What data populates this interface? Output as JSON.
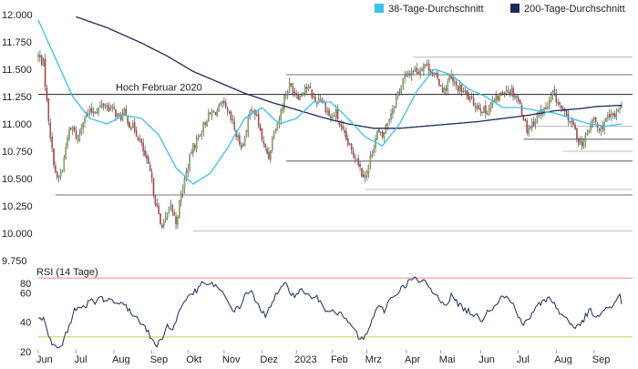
{
  "colors": {
    "ma38": "#3cc1e8",
    "ma200": "#1a2b5c",
    "candle_up": "#8bc34a",
    "candle_down": "#e03232",
    "wick": "#333333",
    "support_line": "#222222",
    "guide_line": "#aaaaaa",
    "rsi_line": "#1a2b5c",
    "rsi_upper": "#e06060",
    "rsi_lower": "#c8c83c",
    "grid": "#dddddd"
  },
  "chart_data": [
    {
      "type": "candlestick",
      "legend": [
        {
          "name": "38-Tage-Durchschnitt",
          "color": "#3cc1e8"
        },
        {
          "name": "200-Tage-Durchschnitt",
          "color": "#1a2b5c"
        }
      ],
      "legend_position": "top-right",
      "ylim": [
        9.75,
        12.0
      ],
      "y_ticks": [
        "12.000",
        "11.750",
        "11.500",
        "11.250",
        "11.000",
        "10.750",
        "10.500",
        "10.250",
        "10.000",
        "9.750"
      ],
      "y_tick_values": [
        12.0,
        11.75,
        11.5,
        11.25,
        11.0,
        10.75,
        10.5,
        10.25,
        10.0,
        9.75
      ],
      "x_tick_labels": [
        "Jun",
        "Jul",
        "Aug",
        "Sep",
        "Okt",
        "Nov",
        "Dez",
        "2023",
        "Feb",
        "Mrz",
        "Apr",
        "Mai",
        "Jun",
        "Jul",
        "Aug",
        "Sep"
      ],
      "x_tick_index": [
        0,
        22,
        44,
        66,
        87,
        108,
        130,
        150,
        171,
        191,
        214,
        234,
        257,
        279,
        301,
        323
      ],
      "n_days": 340,
      "annotation": {
        "text": "Hoch Februar 2020",
        "value": 11.27
      },
      "horizontal_lines": [
        {
          "value": 11.27,
          "from": 0,
          "to": 340,
          "style": "solid"
        },
        {
          "value": 11.61,
          "from": 218,
          "to": 340,
          "style": "solid"
        },
        {
          "value": 11.45,
          "from": 144,
          "to": 340,
          "style": "solid"
        },
        {
          "value": 10.98,
          "from": 282,
          "to": 340,
          "style": "solid"
        },
        {
          "value": 10.86,
          "from": 282,
          "to": 340,
          "style": "solid"
        },
        {
          "value": 10.75,
          "from": 305,
          "to": 340,
          "style": "solid"
        },
        {
          "value": 10.66,
          "from": 144,
          "to": 340,
          "style": "solid"
        },
        {
          "value": 10.4,
          "from": 190,
          "to": 340,
          "style": "solid"
        },
        {
          "value": 10.35,
          "from": 10,
          "to": 340,
          "style": "solid"
        },
        {
          "value": 10.02,
          "from": 90,
          "to": 340,
          "style": "solid"
        }
      ],
      "anchors": [
        [
          0,
          11.62
        ],
        [
          3,
          11.55
        ],
        [
          5,
          11.2
        ],
        [
          8,
          10.75
        ],
        [
          11,
          10.48
        ],
        [
          14,
          10.58
        ],
        [
          17,
          10.9
        ],
        [
          20,
          10.96
        ],
        [
          23,
          10.85
        ],
        [
          26,
          11.05
        ],
        [
          29,
          11.1
        ],
        [
          32,
          11.12
        ],
        [
          35,
          11.14
        ],
        [
          38,
          11.18
        ],
        [
          41,
          11.15
        ],
        [
          44,
          11.12
        ],
        [
          47,
          11.05
        ],
        [
          50,
          11.1
        ],
        [
          53,
          11.0
        ],
        [
          56,
          10.95
        ],
        [
          59,
          10.85
        ],
        [
          62,
          10.7
        ],
        [
          65,
          10.55
        ],
        [
          68,
          10.3
        ],
        [
          71,
          10.08
        ],
        [
          74,
          10.12
        ],
        [
          77,
          10.25
        ],
        [
          80,
          10.1
        ],
        [
          83,
          10.35
        ],
        [
          86,
          10.55
        ],
        [
          89,
          10.75
        ],
        [
          92,
          10.85
        ],
        [
          95,
          10.95
        ],
        [
          98,
          11.05
        ],
        [
          101,
          11.1
        ],
        [
          104,
          11.12
        ],
        [
          107,
          11.18
        ],
        [
          110,
          11.1
        ],
        [
          113,
          11.0
        ],
        [
          116,
          10.85
        ],
        [
          119,
          10.8
        ],
        [
          122,
          11.05
        ],
        [
          125,
          11.15
        ],
        [
          128,
          11.0
        ],
        [
          131,
          10.8
        ],
        [
          134,
          10.7
        ],
        [
          137,
          10.95
        ],
        [
          140,
          11.05
        ],
        [
          143,
          11.25
        ],
        [
          146,
          11.35
        ],
        [
          149,
          11.3
        ],
        [
          152,
          11.25
        ],
        [
          155,
          11.35
        ],
        [
          158,
          11.3
        ],
        [
          161,
          11.2
        ],
        [
          164,
          11.25
        ],
        [
          167,
          11.15
        ],
        [
          170,
          11.05
        ],
        [
          173,
          11.1
        ],
        [
          176,
          10.95
        ],
        [
          179,
          10.85
        ],
        [
          182,
          10.75
        ],
        [
          185,
          10.7
        ],
        [
          188,
          10.55
        ],
        [
          191,
          10.55
        ],
        [
          194,
          10.75
        ],
        [
          197,
          10.92
        ],
        [
          200,
          10.88
        ],
        [
          203,
          11.02
        ],
        [
          206,
          11.15
        ],
        [
          209,
          11.28
        ],
        [
          212,
          11.4
        ],
        [
          215,
          11.45
        ],
        [
          218,
          11.5
        ],
        [
          221,
          11.48
        ],
        [
          224,
          11.55
        ],
        [
          227,
          11.52
        ],
        [
          230,
          11.45
        ],
        [
          233,
          11.38
        ],
        [
          236,
          11.3
        ],
        [
          239,
          11.42
        ],
        [
          242,
          11.35
        ],
        [
          245,
          11.32
        ],
        [
          248,
          11.28
        ],
        [
          251,
          11.22
        ],
        [
          254,
          11.18
        ],
        [
          257,
          11.15
        ],
        [
          260,
          11.1
        ],
        [
          263,
          11.18
        ],
        [
          266,
          11.22
        ],
        [
          269,
          11.28
        ],
        [
          272,
          11.32
        ],
        [
          275,
          11.3
        ],
        [
          278,
          11.25
        ],
        [
          281,
          11.12
        ],
        [
          284,
          10.95
        ],
        [
          287,
          11.0
        ],
        [
          290,
          11.08
        ],
        [
          293,
          11.12
        ],
        [
          296,
          11.15
        ],
        [
          299,
          11.28
        ],
        [
          302,
          11.2
        ],
        [
          305,
          11.1
        ],
        [
          308,
          11.05
        ],
        [
          311,
          10.98
        ],
        [
          314,
          10.85
        ],
        [
          317,
          10.82
        ],
        [
          320,
          10.95
        ],
        [
          323,
          11.05
        ],
        [
          326,
          10.92
        ],
        [
          329,
          11.02
        ],
        [
          332,
          11.05
        ],
        [
          335,
          11.08
        ],
        [
          338,
          11.18
        ],
        [
          339,
          11.15
        ]
      ],
      "ma38_anchors": [
        [
          0,
          11.95
        ],
        [
          10,
          11.6
        ],
        [
          20,
          11.25
        ],
        [
          30,
          11.05
        ],
        [
          40,
          11.0
        ],
        [
          50,
          11.08
        ],
        [
          60,
          11.05
        ],
        [
          70,
          10.9
        ],
        [
          80,
          10.6
        ],
        [
          90,
          10.45
        ],
        [
          100,
          10.55
        ],
        [
          110,
          10.78
        ],
        [
          120,
          11.05
        ],
        [
          130,
          11.15
        ],
        [
          140,
          11.0
        ],
        [
          150,
          11.05
        ],
        [
          160,
          11.2
        ],
        [
          170,
          11.2
        ],
        [
          180,
          11.05
        ],
        [
          190,
          10.88
        ],
        [
          200,
          10.8
        ],
        [
          210,
          11.0
        ],
        [
          220,
          11.3
        ],
        [
          230,
          11.5
        ],
        [
          240,
          11.45
        ],
        [
          250,
          11.32
        ],
        [
          260,
          11.25
        ],
        [
          270,
          11.15
        ],
        [
          280,
          11.15
        ],
        [
          290,
          11.12
        ],
        [
          300,
          11.1
        ],
        [
          310,
          11.05
        ],
        [
          320,
          11.0
        ],
        [
          330,
          10.98
        ],
        [
          339,
          11.0
        ]
      ],
      "ma200_anchors": [
        [
          22,
          11.98
        ],
        [
          40,
          11.88
        ],
        [
          60,
          11.74
        ],
        [
          75,
          11.62
        ],
        [
          90,
          11.48
        ],
        [
          105,
          11.38
        ],
        [
          120,
          11.28
        ],
        [
          135,
          11.2
        ],
        [
          150,
          11.13
        ],
        [
          165,
          11.06
        ],
        [
          180,
          11.0
        ],
        [
          195,
          10.96
        ],
        [
          210,
          10.96
        ],
        [
          225,
          10.98
        ],
        [
          240,
          11.0
        ],
        [
          255,
          11.02
        ],
        [
          270,
          11.05
        ],
        [
          285,
          11.08
        ],
        [
          300,
          11.12
        ],
        [
          315,
          11.14
        ],
        [
          325,
          11.16
        ],
        [
          339,
          11.17
        ]
      ]
    },
    {
      "type": "line",
      "title": "RSI (14 Tage)",
      "ylim": [
        20,
        75
      ],
      "y_ticks": [
        "80",
        "60",
        "40",
        "20"
      ],
      "y_tick_values": [
        80,
        60,
        40,
        20
      ],
      "reference_lines": [
        70,
        30
      ],
      "x_tick_labels": [
        "Jun",
        "Jul",
        "Aug",
        "Sep",
        "Okt",
        "Nov",
        "Dez",
        "2023",
        "Feb",
        "Mrz",
        "Apr",
        "Mai",
        "Jun",
        "Jul",
        "Aug",
        "Sep"
      ],
      "anchors": [
        [
          0,
          43
        ],
        [
          3,
          42
        ],
        [
          6,
          30
        ],
        [
          9,
          24
        ],
        [
          12,
          22
        ],
        [
          15,
          28
        ],
        [
          18,
          38
        ],
        [
          21,
          48
        ],
        [
          24,
          52
        ],
        [
          27,
          49
        ],
        [
          30,
          55
        ],
        [
          33,
          53
        ],
        [
          36,
          57
        ],
        [
          39,
          55
        ],
        [
          42,
          56
        ],
        [
          45,
          52
        ],
        [
          48,
          55
        ],
        [
          51,
          50
        ],
        [
          54,
          46
        ],
        [
          57,
          44
        ],
        [
          60,
          40
        ],
        [
          63,
          35
        ],
        [
          66,
          28
        ],
        [
          69,
          24
        ],
        [
          72,
          30
        ],
        [
          75,
          38
        ],
        [
          78,
          34
        ],
        [
          81,
          45
        ],
        [
          84,
          52
        ],
        [
          87,
          58
        ],
        [
          90,
          60
        ],
        [
          93,
          62
        ],
        [
          96,
          68
        ],
        [
          99,
          64
        ],
        [
          102,
          66
        ],
        [
          105,
          62
        ],
        [
          108,
          58
        ],
        [
          111,
          52
        ],
        [
          114,
          48
        ],
        [
          117,
          50
        ],
        [
          120,
          58
        ],
        [
          123,
          62
        ],
        [
          126,
          55
        ],
        [
          129,
          48
        ],
        [
          132,
          45
        ],
        [
          135,
          52
        ],
        [
          138,
          58
        ],
        [
          141,
          62
        ],
        [
          144,
          66
        ],
        [
          147,
          60
        ],
        [
          150,
          58
        ],
        [
          153,
          62
        ],
        [
          156,
          60
        ],
        [
          159,
          55
        ],
        [
          162,
          58
        ],
        [
          165,
          50
        ],
        [
          168,
          48
        ],
        [
          171,
          50
        ],
        [
          174,
          46
        ],
        [
          177,
          44
        ],
        [
          180,
          40
        ],
        [
          183,
          36
        ],
        [
          186,
          30
        ],
        [
          189,
          28
        ],
        [
          192,
          35
        ],
        [
          195,
          45
        ],
        [
          198,
          50
        ],
        [
          201,
          48
        ],
        [
          204,
          55
        ],
        [
          207,
          58
        ],
        [
          210,
          62
        ],
        [
          213,
          65
        ],
        [
          216,
          68
        ],
        [
          219,
          70
        ],
        [
          222,
          66
        ],
        [
          225,
          68
        ],
        [
          228,
          62
        ],
        [
          231,
          58
        ],
        [
          234,
          55
        ],
        [
          237,
          52
        ],
        [
          240,
          58
        ],
        [
          243,
          54
        ],
        [
          246,
          50
        ],
        [
          249,
          48
        ],
        [
          252,
          46
        ],
        [
          255,
          44
        ],
        [
          258,
          42
        ],
        [
          261,
          48
        ],
        [
          264,
          50
        ],
        [
          267,
          54
        ],
        [
          270,
          58
        ],
        [
          273,
          56
        ],
        [
          276,
          52
        ],
        [
          279,
          45
        ],
        [
          282,
          38
        ],
        [
          285,
          42
        ],
        [
          288,
          48
        ],
        [
          291,
          52
        ],
        [
          294,
          54
        ],
        [
          297,
          58
        ],
        [
          300,
          52
        ],
        [
          303,
          46
        ],
        [
          306,
          44
        ],
        [
          309,
          40
        ],
        [
          312,
          36
        ],
        [
          315,
          38
        ],
        [
          318,
          44
        ],
        [
          321,
          48
        ],
        [
          324,
          42
        ],
        [
          327,
          46
        ],
        [
          330,
          50
        ],
        [
          333,
          48
        ],
        [
          336,
          56
        ],
        [
          338,
          60
        ],
        [
          339,
          52
        ]
      ]
    }
  ]
}
